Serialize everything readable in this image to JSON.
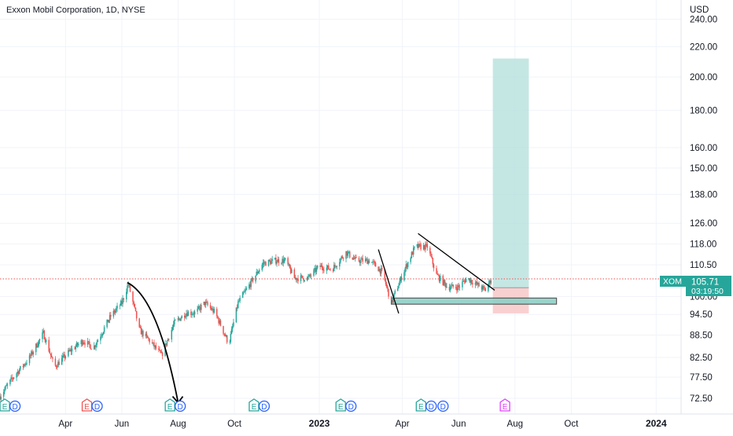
{
  "chart_data": {
    "type": "candlestick",
    "title": "Exxon Mobil Corporation, 1D, NYSE",
    "currency": "USD",
    "symbol": "XOM",
    "last_price": "105.71",
    "countdown": "03:19:50",
    "y_scale": "log",
    "ylim": [
      69,
      255
    ],
    "y_ticks": [
      "240.00",
      "220.00",
      "200.00",
      "180.00",
      "160.00",
      "150.00",
      "138.00",
      "126.00",
      "118.00",
      "110.50",
      "100.00",
      "94.50",
      "88.50",
      "82.50",
      "77.50",
      "72.50"
    ],
    "x_ticks": [
      {
        "label": "Apr",
        "date": "2022-04-01",
        "bold": false
      },
      {
        "label": "Jun",
        "date": "2022-06-01",
        "bold": false
      },
      {
        "label": "Aug",
        "date": "2022-08-01",
        "bold": false
      },
      {
        "label": "Oct",
        "date": "2022-10-01",
        "bold": false
      },
      {
        "label": "2023",
        "date": "2023-01-01",
        "bold": true
      },
      {
        "label": "Apr",
        "date": "2023-04-01",
        "bold": false
      },
      {
        "label": "Jun",
        "date": "2023-06-01",
        "bold": false
      },
      {
        "label": "Aug",
        "date": "2023-08-01",
        "bold": false
      },
      {
        "label": "Oct",
        "date": "2023-10-01",
        "bold": false
      },
      {
        "label": "2024",
        "date": "2024-01-01",
        "bold": true
      }
    ],
    "xlim": [
      "2022-01-20",
      "2024-01-28"
    ],
    "price_path": [
      [
        "2022-01-20",
        73
      ],
      [
        "2022-02-05",
        78
      ],
      [
        "2022-02-20",
        82
      ],
      [
        "2022-03-08",
        89
      ],
      [
        "2022-03-20",
        80
      ],
      [
        "2022-04-05",
        84
      ],
      [
        "2022-04-20",
        87
      ],
      [
        "2022-05-01",
        85
      ],
      [
        "2022-05-10",
        89
      ],
      [
        "2022-05-20",
        94
      ],
      [
        "2022-06-01",
        98
      ],
      [
        "2022-06-08",
        104
      ],
      [
        "2022-06-20",
        90
      ],
      [
        "2022-07-01",
        87
      ],
      [
        "2022-07-14",
        83
      ],
      [
        "2022-07-28",
        92
      ],
      [
        "2022-08-10",
        95
      ],
      [
        "2022-08-20",
        95
      ],
      [
        "2022-08-30",
        98
      ],
      [
        "2022-09-10",
        95
      ],
      [
        "2022-09-25",
        86
      ],
      [
        "2022-10-05",
        98
      ],
      [
        "2022-10-20",
        105
      ],
      [
        "2022-11-01",
        111
      ],
      [
        "2022-11-15",
        112
      ],
      [
        "2022-11-25",
        112
      ],
      [
        "2022-12-05",
        106
      ],
      [
        "2022-12-20",
        106
      ],
      [
        "2023-01-01",
        110
      ],
      [
        "2023-01-15",
        109
      ],
      [
        "2023-01-30",
        115
      ],
      [
        "2023-02-10",
        112
      ],
      [
        "2023-02-25",
        112
      ],
      [
        "2023-03-10",
        108
      ],
      [
        "2023-03-20",
        98
      ],
      [
        "2023-03-28",
        104
      ],
      [
        "2023-04-05",
        110
      ],
      [
        "2023-04-15",
        117
      ],
      [
        "2023-04-28",
        117
      ],
      [
        "2023-05-08",
        107
      ],
      [
        "2023-05-20",
        103
      ],
      [
        "2023-06-01",
        103
      ],
      [
        "2023-06-10",
        106
      ],
      [
        "2023-06-20",
        104
      ],
      [
        "2023-06-30",
        102
      ],
      [
        "2023-07-06",
        105.7
      ]
    ],
    "horizontal_level": 105.71,
    "support_zone": {
      "top": 99.5,
      "bottom": 97.6,
      "start": "2023-03-20",
      "end": "2023-09-15"
    },
    "long_position": {
      "start": "2023-07-08",
      "end": "2023-08-16",
      "entry": 102.8,
      "target": 212,
      "stop": 94.8
    },
    "trendlines": [
      {
        "from": [
          "2023-04-18",
          122
        ],
        "to": [
          "2023-07-10",
          102
        ]
      },
      {
        "from": [
          "2023-03-06",
          116
        ],
        "to": [
          "2023-03-28",
          94.8
        ]
      }
    ],
    "curved_arrow": {
      "from": [
        "2022-06-07",
        104.5
      ],
      "via": [
        "2022-07-10",
        88
      ],
      "to": [
        "2022-08-01",
        71.5
      ]
    },
    "events": [
      {
        "date": "2022-02-01",
        "badges": [
          "E",
          "D"
        ],
        "earnings": "green"
      },
      {
        "date": "2022-05-01",
        "badges": [
          "E",
          "D"
        ],
        "earnings": "red"
      },
      {
        "date": "2022-07-30",
        "badges": [
          "E",
          "D"
        ],
        "earnings": "green"
      },
      {
        "date": "2022-10-29",
        "badges": [
          "E",
          "D"
        ],
        "earnings": "green"
      },
      {
        "date": "2023-01-31",
        "badges": [
          "E",
          "D"
        ],
        "earnings": "green"
      },
      {
        "date": "2023-04-28",
        "badges": [
          "E",
          "D",
          "D"
        ],
        "earnings": "green"
      },
      {
        "date": "2023-07-28",
        "badges": [
          "E"
        ],
        "earnings": "future"
      }
    ],
    "colors": {
      "up": "#26a69a",
      "down": "#ef5350",
      "target_fill": "#b2dfdb",
      "stop_fill": "#f8c4c4",
      "zone_fill": "#8fd1c7",
      "line": "#000000",
      "badge_blue": "#2962ff",
      "badge_purple": "#e040fb"
    }
  }
}
